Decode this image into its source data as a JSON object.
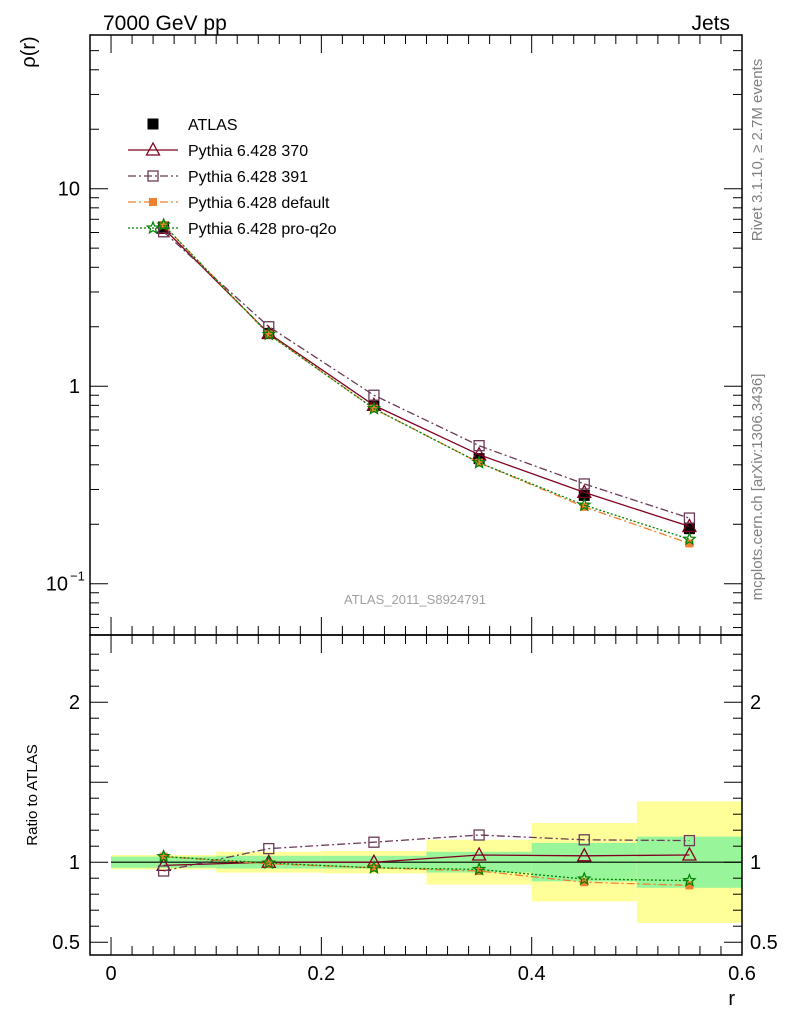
{
  "header": {
    "left": "7000 GeV pp",
    "right": "Jets"
  },
  "side_labels": {
    "top": "Rivet 3.1.10, ≥ 2.7M events",
    "bottom": "mcplots.cern.ch [arXiv:1306.3436]"
  },
  "analysis_label": "ATLAS_2011_S8924791",
  "chart_data": [
    {
      "type": "line",
      "panel": "main",
      "ylabel": "ρ(r)",
      "xlabel": "",
      "y_scale": "log",
      "ylim": [
        0.055,
        60
      ],
      "xlim": [
        -0.02,
        0.6
      ],
      "y_ticks": [
        {
          "value": 0.1,
          "label": "10",
          "exp": "−1"
        },
        {
          "value": 1,
          "label": "1",
          "exp": ""
        },
        {
          "value": 10,
          "label": "10",
          "exp": ""
        }
      ],
      "x": [
        0.05,
        0.15,
        0.25,
        0.35,
        0.45,
        0.55
      ],
      "legend_position": "top-left",
      "series": [
        {
          "name": "ATLAS",
          "color": "#000000",
          "marker": "filled-square",
          "line": "none",
          "values": [
            6.4,
            1.85,
            0.8,
            0.43,
            0.28,
            0.19
          ]
        },
        {
          "name": "Pythia 6.428 370",
          "color": "#800020",
          "marker": "open-triangle",
          "line": "solid",
          "values": [
            6.3,
            1.85,
            0.8,
            0.45,
            0.29,
            0.195
          ]
        },
        {
          "name": "Pythia 6.428 391",
          "color": "#6b3a58",
          "marker": "open-square",
          "line": "dashdot",
          "values": [
            6.05,
            2.0,
            0.9,
            0.5,
            0.32,
            0.215
          ]
        },
        {
          "name": "Pythia 6.428 default",
          "color": "#f08030",
          "marker": "filled-square-small",
          "line": "dashdot",
          "values": [
            6.55,
            1.83,
            0.77,
            0.41,
            0.245,
            0.16
          ]
        },
        {
          "name": "Pythia 6.428 pro-q2o",
          "color": "#008000",
          "marker": "star",
          "line": "dotted",
          "values": [
            6.55,
            1.83,
            0.77,
            0.41,
            0.25,
            0.168
          ]
        }
      ]
    },
    {
      "type": "line",
      "panel": "ratio",
      "ylabel": "Ratio to ATLAS",
      "xlabel": "r",
      "ylim": [
        0.42,
        2.42
      ],
      "xlim": [
        -0.02,
        0.6
      ],
      "y_ticks": [
        0.5,
        1,
        2
      ],
      "x_ticks": [
        0,
        0.2,
        0.4,
        0.6
      ],
      "x_tick_labels": [
        "0",
        "0.2",
        "0.4",
        "0.6"
      ],
      "x": [
        0.05,
        0.15,
        0.25,
        0.35,
        0.45,
        0.55
      ],
      "bands": [
        {
          "lo": 0.0,
          "hi": 0.1,
          "yellow": [
            0.955,
            1.045
          ],
          "green": [
            0.965,
            1.035
          ]
        },
        {
          "lo": 0.1,
          "hi": 0.2,
          "yellow": [
            0.935,
            1.065
          ],
          "green": [
            0.96,
            1.04
          ]
        },
        {
          "lo": 0.2,
          "hi": 0.3,
          "yellow": [
            0.93,
            1.07
          ],
          "green": [
            0.96,
            1.04
          ]
        },
        {
          "lo": 0.3,
          "hi": 0.4,
          "yellow": [
            0.86,
            1.14
          ],
          "green": [
            0.935,
            1.065
          ]
        },
        {
          "lo": 0.4,
          "hi": 0.5,
          "yellow": [
            0.755,
            1.245
          ],
          "green": [
            0.88,
            1.12
          ]
        },
        {
          "lo": 0.5,
          "hi": 0.6,
          "yellow": [
            0.62,
            1.38
          ],
          "green": [
            0.84,
            1.16
          ]
        }
      ],
      "series": [
        {
          "name": "Pythia 6.428 370",
          "color": "#800020",
          "marker": "open-triangle",
          "line": "solid",
          "values": [
            0.98,
            1.0,
            1.0,
            1.045,
            1.04,
            1.045
          ]
        },
        {
          "name": "Pythia 6.428 391",
          "color": "#6b3a58",
          "marker": "open-square",
          "line": "dashdot",
          "values": [
            0.945,
            1.085,
            1.125,
            1.17,
            1.14,
            1.135
          ]
        },
        {
          "name": "Pythia 6.428 default",
          "color": "#f08030",
          "marker": "filled-square-small",
          "line": "dashdot",
          "values": [
            1.035,
            0.99,
            0.965,
            0.945,
            0.875,
            0.855
          ]
        },
        {
          "name": "Pythia 6.428 pro-q2o",
          "color": "#008000",
          "marker": "star",
          "line": "dotted",
          "values": [
            1.035,
            0.995,
            0.965,
            0.955,
            0.895,
            0.885
          ]
        }
      ]
    }
  ]
}
